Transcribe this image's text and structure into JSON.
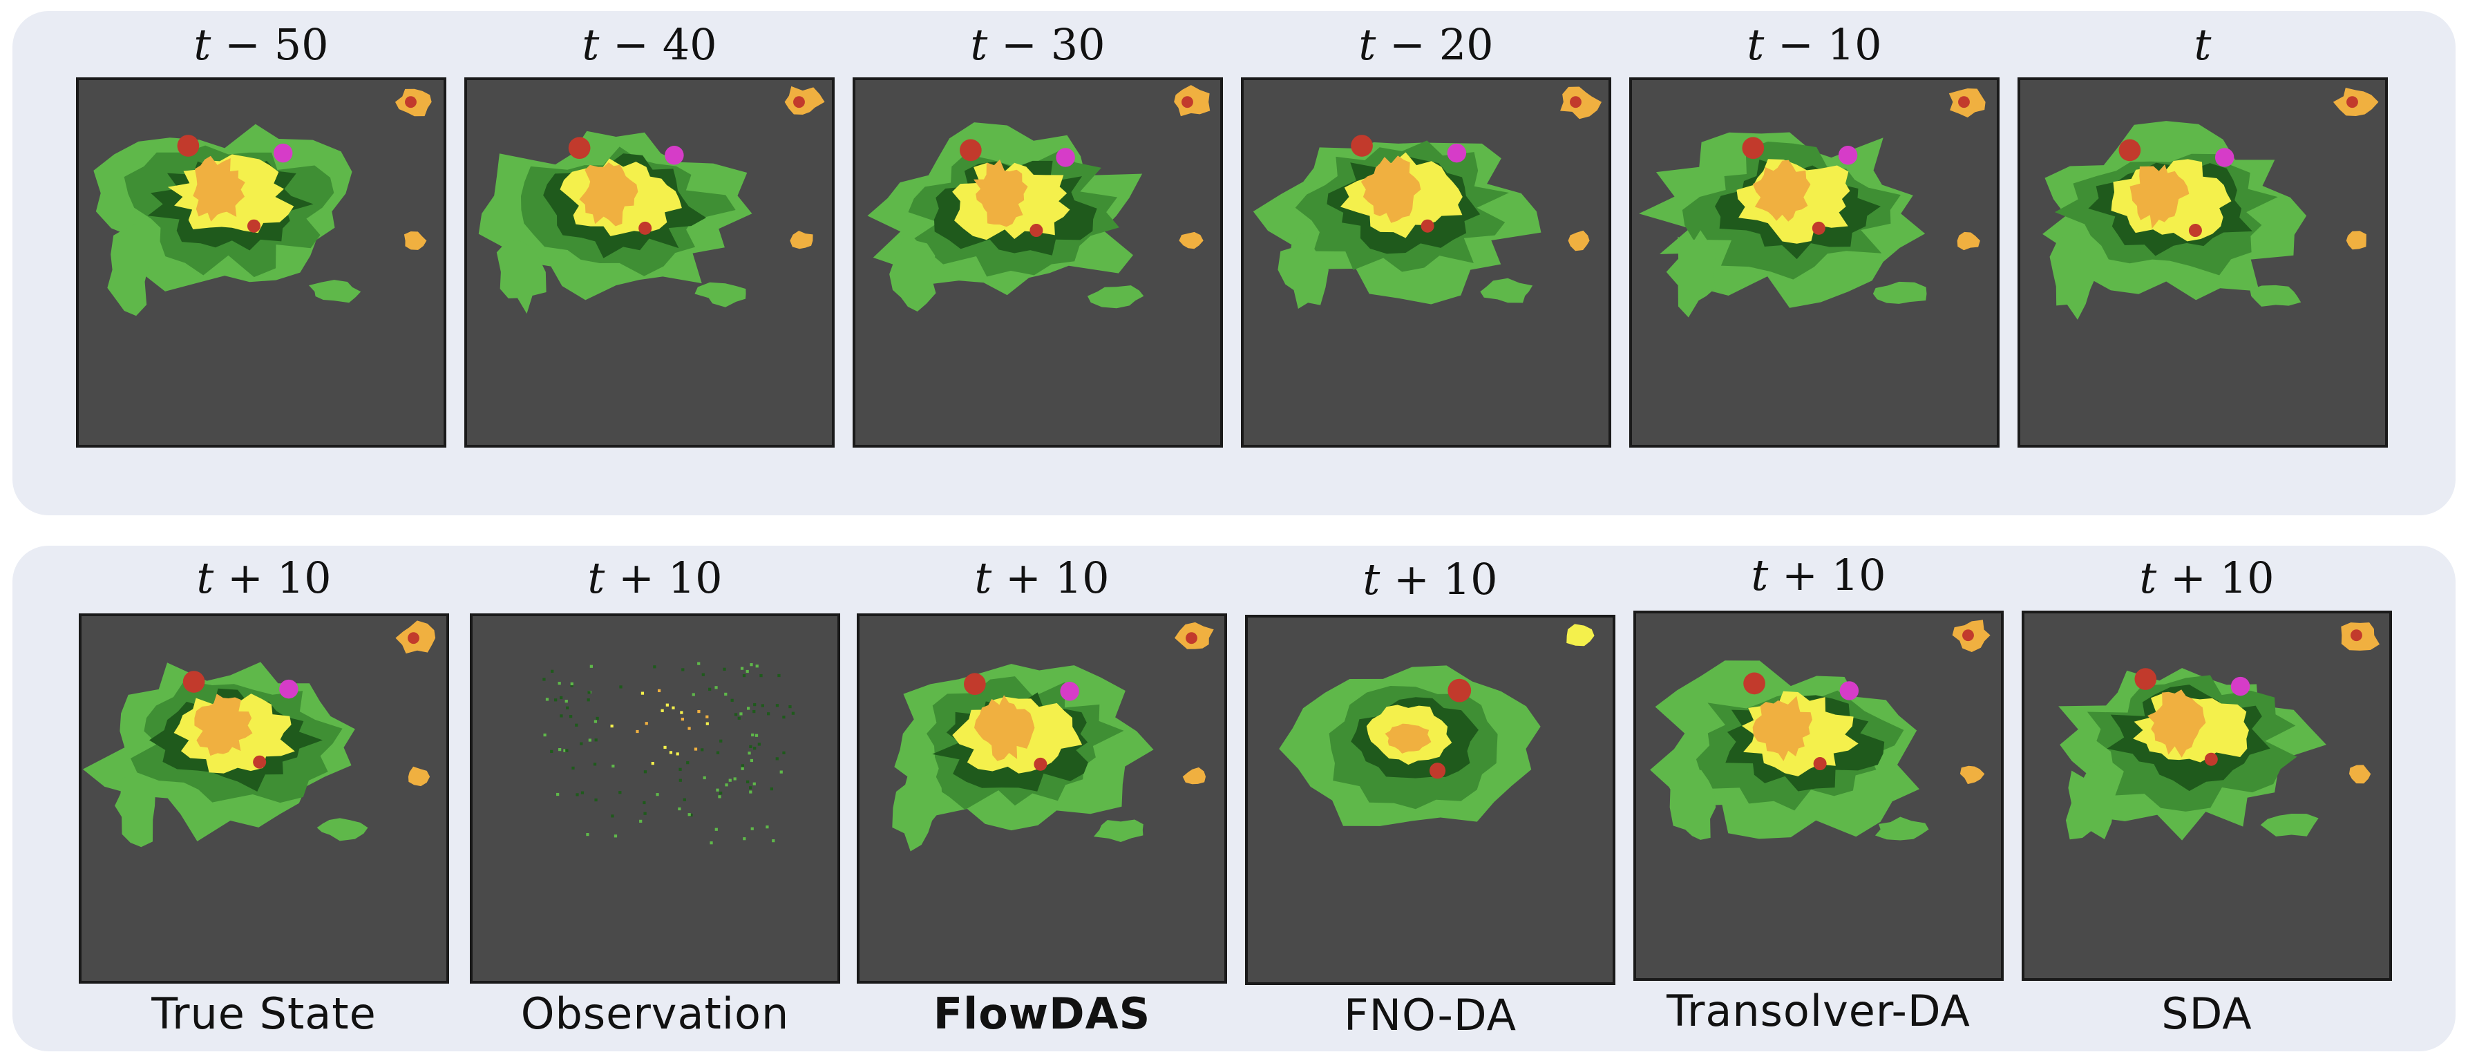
{
  "top_row": {
    "frames": [
      {
        "label": "t − 50"
      },
      {
        "label": "t − 40"
      },
      {
        "label": "t − 30"
      },
      {
        "label": "t − 20"
      },
      {
        "label": "t − 10"
      },
      {
        "label": "t"
      }
    ]
  },
  "bottom_row": {
    "frames": [
      {
        "label": "t + 10",
        "method": "True State"
      },
      {
        "label": "t + 10",
        "method": "Observation"
      },
      {
        "label": "t + 10",
        "method": "FlowDAS",
        "bold": true
      },
      {
        "label": "t + 10",
        "method": "FNO-DA"
      },
      {
        "label": "t + 10",
        "method": "Transolver-DA"
      },
      {
        "label": "t + 10",
        "method": "SDA"
      }
    ]
  },
  "colors": {
    "background": "#4a4a4a",
    "light_green": "#5fb84a",
    "mid_green": "#3f8f34",
    "dark_green": "#1f5a1c",
    "yellow": "#f4f04c",
    "orange": "#f0b040",
    "dark_orange": "#e08a30",
    "red": "#c23a2c",
    "magenta": "#d63cc8",
    "panel": "#e9ecf4"
  }
}
